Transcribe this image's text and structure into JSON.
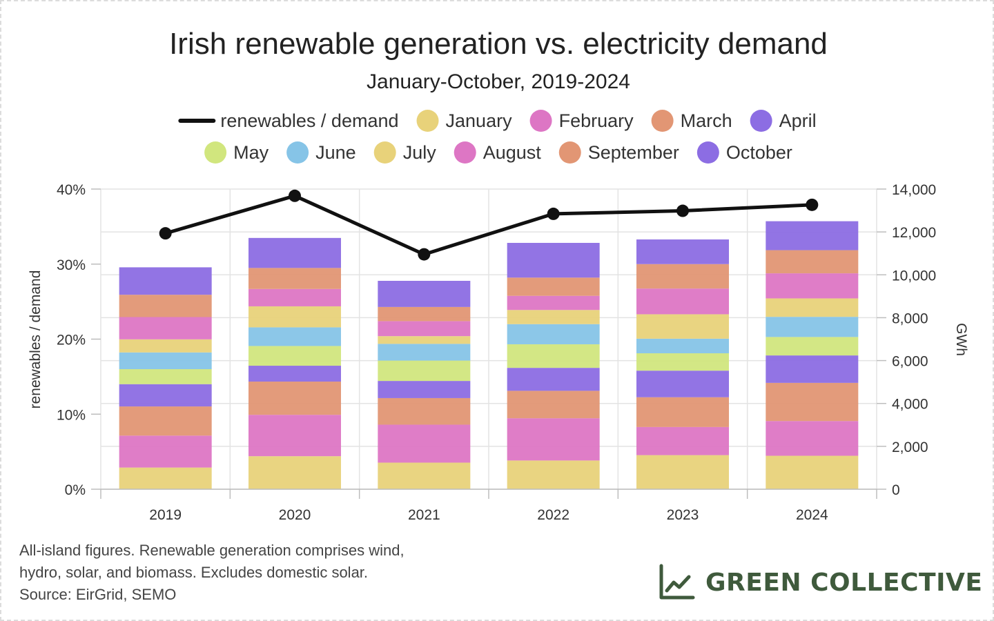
{
  "chart_data": {
    "type": "bar",
    "stacked": true,
    "title": "Irish renewable generation vs. electricity demand",
    "subtitle": "January-October, 2019-2024",
    "categories": [
      "2019",
      "2020",
      "2021",
      "2022",
      "2023",
      "2024"
    ],
    "y_left": {
      "label": "renewables / demand",
      "range": [
        0,
        40
      ],
      "ticks": [
        "0%",
        "10%",
        "20%",
        "30%",
        "40%"
      ],
      "tick_values": [
        0,
        10,
        20,
        30,
        40
      ]
    },
    "y_right": {
      "label": "GWh",
      "range": [
        0,
        14000
      ],
      "ticks": [
        "0",
        "2,000",
        "4,000",
        "6,000",
        "8,000",
        "10,000",
        "12,000",
        "14,000"
      ],
      "tick_values": [
        0,
        2000,
        4000,
        6000,
        8000,
        10000,
        12000,
        14000
      ]
    },
    "series": [
      {
        "name": "January",
        "color": "#e8d27a",
        "values": [
          1010,
          1540,
          1240,
          1340,
          1590,
          1560
        ]
      },
      {
        "name": "February",
        "color": "#dd76c4",
        "values": [
          1490,
          1930,
          1770,
          1970,
          1310,
          1620
        ]
      },
      {
        "name": "March",
        "color": "#e29674",
        "values": [
          1360,
          1550,
          1240,
          1280,
          1390,
          1780
        ]
      },
      {
        "name": "April",
        "color": "#8c6de3",
        "values": [
          1040,
          740,
          800,
          1070,
          1240,
          1280
        ]
      },
      {
        "name": "May",
        "color": "#d1e67e",
        "values": [
          700,
          920,
          950,
          1100,
          810,
          860
        ]
      },
      {
        "name": "June",
        "color": "#86c4e7",
        "values": [
          780,
          870,
          780,
          940,
          680,
          940
        ]
      },
      {
        "name": "July",
        "color": "#e8d27a",
        "values": [
          610,
          980,
          360,
          660,
          1140,
          860
        ]
      },
      {
        "name": "August",
        "color": "#dd76c4",
        "values": [
          1040,
          810,
          700,
          660,
          1200,
          1170
        ]
      },
      {
        "name": "September",
        "color": "#e29674",
        "values": [
          1040,
          980,
          660,
          850,
          1140,
          1080
        ]
      },
      {
        "name": "October",
        "color": "#8c6de3",
        "values": [
          1280,
          1400,
          1220,
          1620,
          1150,
          1350
        ]
      }
    ],
    "line_series": {
      "name": "renewables / demand",
      "axis": "left",
      "color": "#111111",
      "values": [
        34.1,
        39.1,
        31.3,
        36.7,
        37.1,
        37.9
      ]
    },
    "legend_position": "top",
    "grid": true
  },
  "footnote": {
    "lines": [
      "All-island figures. Renewable generation comprises wind,",
      "hydro, solar, and biomass. Excludes domestic solar.",
      "Source: EirGrid, SEMO"
    ]
  },
  "brand": {
    "name": "GREEN COLLECTIVE",
    "icon": "line-chart-icon",
    "color": "#3f5a3c"
  }
}
